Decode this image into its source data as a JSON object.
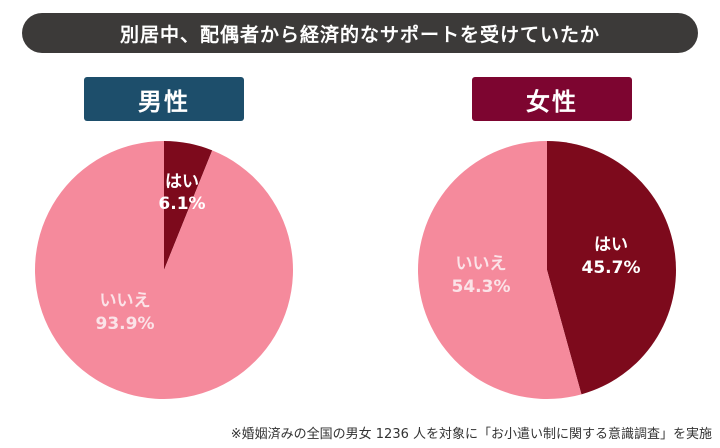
{
  "title": "別居中、配偶者から経済的なサポートを受けていたか",
  "footnote": "※婚姻済みの全国の男女 1236 人を対象に「お小遣い制に関する意識調査」を実施",
  "colors": {
    "yes": "#7d0a1c",
    "no": "#f58a9c",
    "male_badge": "#1d4e6b",
    "female_badge": "#7d0530"
  },
  "chart_data": [
    {
      "type": "pie",
      "title": "男性",
      "slices": [
        {
          "label": "はい",
          "value": 6.1,
          "display": "6.1%"
        },
        {
          "label": "いいえ",
          "value": 93.9,
          "display": "93.9%"
        }
      ]
    },
    {
      "type": "pie",
      "title": "女性",
      "slices": [
        {
          "label": "はい",
          "value": 45.7,
          "display": "45.7%"
        },
        {
          "label": "いいえ",
          "value": 54.3,
          "display": "54.3%"
        }
      ]
    }
  ]
}
